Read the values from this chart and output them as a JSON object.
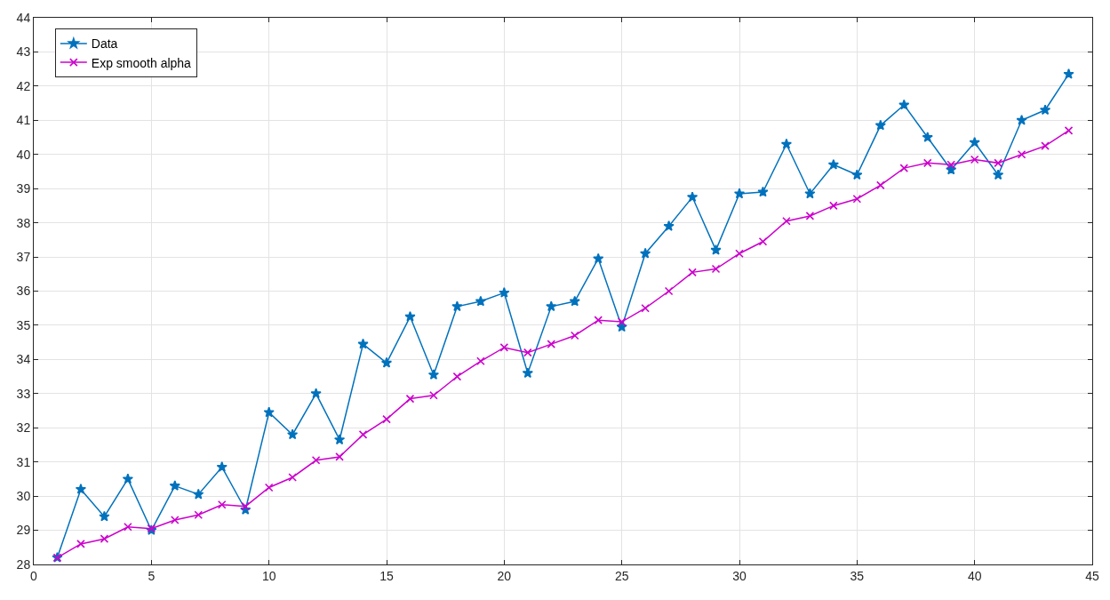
{
  "chart_data": {
    "type": "line",
    "x": [
      1,
      2,
      3,
      4,
      5,
      6,
      7,
      8,
      9,
      10,
      11,
      12,
      13,
      14,
      15,
      16,
      17,
      18,
      19,
      20,
      21,
      22,
      23,
      24,
      25,
      26,
      27,
      28,
      29,
      30,
      31,
      32,
      33,
      34,
      35,
      36,
      37,
      38,
      39,
      40,
      41,
      42,
      43,
      44
    ],
    "series": [
      {
        "name": "Data",
        "color": "#0072bd",
        "marker": "star",
        "values": [
          28.2,
          30.2,
          29.4,
          30.5,
          29.0,
          30.3,
          30.05,
          30.85,
          29.6,
          32.45,
          31.8,
          33.0,
          31.65,
          34.45,
          33.9,
          35.25,
          33.55,
          35.55,
          35.7,
          35.95,
          33.6,
          35.55,
          35.7,
          36.95,
          34.95,
          37.1,
          37.9,
          38.75,
          37.2,
          38.85,
          38.9,
          40.3,
          38.85,
          39.7,
          39.4,
          40.85,
          41.45,
          40.5,
          39.55,
          40.35,
          39.4,
          41.0,
          41.3,
          42.35
        ]
      },
      {
        "name": "Exp smooth alpha",
        "color": "#cc00cc",
        "marker": "cross",
        "values": [
          28.2,
          28.6,
          28.75,
          29.1,
          29.05,
          29.3,
          29.45,
          29.75,
          29.7,
          30.25,
          30.55,
          31.05,
          31.15,
          31.8,
          32.25,
          32.85,
          32.95,
          33.5,
          33.95,
          34.35,
          34.2,
          34.45,
          34.7,
          35.15,
          35.1,
          35.5,
          36.0,
          36.55,
          36.65,
          37.1,
          37.45,
          38.05,
          38.2,
          38.5,
          38.7,
          39.1,
          39.6,
          39.75,
          39.7,
          39.85,
          39.75,
          40.0,
          40.25,
          40.7
        ]
      }
    ],
    "xlim": [
      0,
      45
    ],
    "xticks": [
      0,
      5,
      10,
      15,
      20,
      25,
      30,
      35,
      40,
      45
    ],
    "ylim": [
      28,
      44
    ],
    "yticks": [
      28,
      29,
      30,
      31,
      32,
      33,
      34,
      35,
      36,
      37,
      38,
      39,
      40,
      41,
      42,
      43,
      44
    ],
    "grid": true,
    "legend": "top left",
    "line_style": "solid"
  }
}
